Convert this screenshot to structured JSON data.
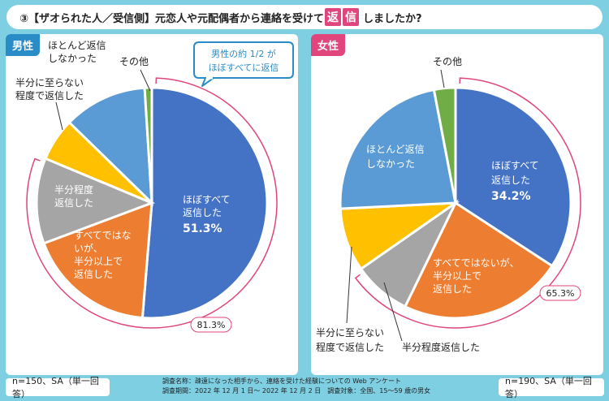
{
  "title": {
    "prefix": "③【ザオられた人／受信側】元恋人や元配偶者から連絡を受けて",
    "highlight1": "返",
    "highlight2": "信",
    "suffix": "しましたか?"
  },
  "colors": {
    "male_badge": "#2a8cc7",
    "female_badge": "#e0457b",
    "bracket": "#e0457b",
    "callout_border": "#2a8cc7",
    "callout_text": "#2a8cc7"
  },
  "male": {
    "badge": "男性",
    "callout_lines": [
      "男性の約 1/2 が",
      "ほぼすべてに返信"
    ],
    "bracket_label": "81.3%"
  },
  "female": {
    "badge": "女性",
    "bracket_label": "65.3%"
  },
  "footer": {
    "left": "n=150、SA（単一回答）",
    "right": "n=190、SA（単一回答）",
    "note_line1": "調査名称：疎遠になった相手から、連絡を受けた経験についての Web アンケート",
    "note_line2": "調査期間：2022 年 12 月 1 日～ 2022 年 12 月 2 日　調査対象：全国、15～59 歳の男女"
  },
  "chart_data": [
    {
      "type": "pie",
      "title": "男性",
      "series": [
        {
          "label": "ほぼすべて返信した",
          "value": 51.3,
          "value_label": "51.3%",
          "color": "#4472c4"
        },
        {
          "label": "すべてではないが、半分以上で返信した",
          "value": 18.0,
          "color": "#ed7d31"
        },
        {
          "label": "半分程度返信した",
          "value": 12.0,
          "color": "#a5a5a5"
        },
        {
          "label": "半分に至らない程度で返信した",
          "value": 6.0,
          "color": "#ffc000"
        },
        {
          "label": "ほとんど返信しなかった",
          "value": 11.7,
          "color": "#5b9bd5"
        },
        {
          "label": "その他",
          "value": 1.0,
          "color": "#70ad47"
        }
      ],
      "bracket_total": 81.3
    },
    {
      "type": "pie",
      "title": "女性",
      "series": [
        {
          "label": "ほぼすべて返信した",
          "value": 34.2,
          "value_label": "34.2%",
          "color": "#4472c4"
        },
        {
          "label": "すべてではないが、半分以上で返信した",
          "value": 23.0,
          "color": "#ed7d31"
        },
        {
          "label": "半分程度返信した",
          "value": 8.1,
          "color": "#a5a5a5"
        },
        {
          "label": "半分に至らない程度で返信した",
          "value": 8.9,
          "color": "#ffc000"
        },
        {
          "label": "ほとんど返信しなかった",
          "value": 22.8,
          "color": "#5b9bd5"
        },
        {
          "label": "その他",
          "value": 3.0,
          "color": "#70ad47"
        }
      ],
      "bracket_total": 65.3
    }
  ]
}
